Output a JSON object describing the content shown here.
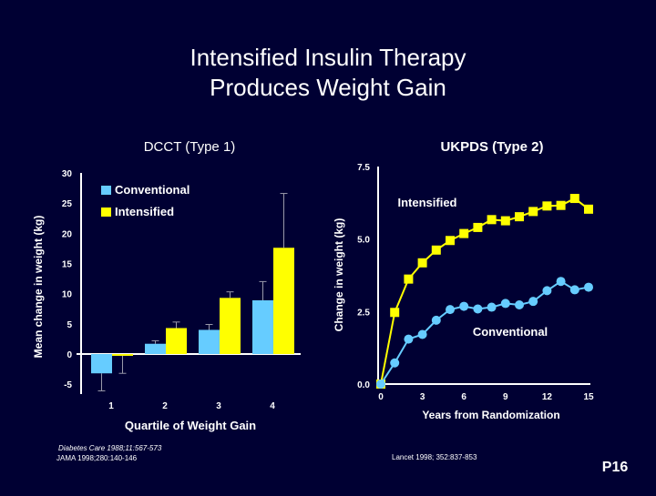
{
  "slide": {
    "title_line1": "Intensified Insulin Therapy",
    "title_line2": "Produces Weight Gain",
    "slide_number": "P16",
    "background": "#000033"
  },
  "chart_data": [
    {
      "type": "bar",
      "title": "DCCT (Type 1)",
      "xlabel": "Quartile of Weight Gain",
      "ylabel": "Mean change in weight (kg)",
      "categories": [
        "1",
        "2",
        "3",
        "4"
      ],
      "ylim": [
        -5,
        30
      ],
      "yticks": [
        "30",
        "25",
        "20",
        "15",
        "10",
        "5",
        "0",
        "-5"
      ],
      "grid": false,
      "legend": "top-left",
      "series": [
        {
          "name": "Conventional",
          "color": "#66ccff",
          "values": [
            -3.2,
            1.7,
            4.0,
            8.9
          ],
          "error_ends": [
            -6.1,
            2.2,
            4.9,
            12.0
          ]
        },
        {
          "name": "Intensified",
          "color": "#ffff00",
          "values": [
            -0.3,
            4.3,
            9.3,
            17.6
          ],
          "error_ends": [
            -3.2,
            5.3,
            10.3,
            26.6
          ]
        }
      ],
      "citations": [
        "Diabetes Care 1988;11:567-573",
        "JAMA 1998;280:140-146"
      ]
    },
    {
      "type": "line",
      "title": "UKPDS (Type 2)",
      "xlabel": "Years from Randomization",
      "ylabel": "Change in weight (kg)",
      "x": [
        0,
        1,
        2,
        3,
        4,
        5,
        6,
        7,
        8,
        9,
        10,
        11,
        12,
        13,
        14,
        15
      ],
      "xlim": [
        0,
        15
      ],
      "xticks": [
        "0",
        "3",
        "6",
        "9",
        "12",
        "15"
      ],
      "ylim": [
        0,
        7.5
      ],
      "yticks": [
        "7.5",
        "5.0",
        "2.5",
        "0.0"
      ],
      "grid": false,
      "series": [
        {
          "name": "Intensified",
          "color": "#ffff00",
          "marker": "square",
          "values": [
            0,
            2.47,
            3.62,
            4.18,
            4.62,
            4.95,
            5.19,
            5.4,
            5.67,
            5.63,
            5.77,
            5.95,
            6.14,
            6.16,
            6.4,
            6.03
          ]
        },
        {
          "name": "Conventional",
          "color": "#66ccff",
          "marker": "circle",
          "values": [
            0,
            0.73,
            1.55,
            1.71,
            2.2,
            2.57,
            2.68,
            2.59,
            2.65,
            2.78,
            2.73,
            2.85,
            3.22,
            3.54,
            3.25,
            3.34
          ]
        }
      ],
      "citations": [
        "Lancet 1998; 352:837-853"
      ]
    }
  ]
}
